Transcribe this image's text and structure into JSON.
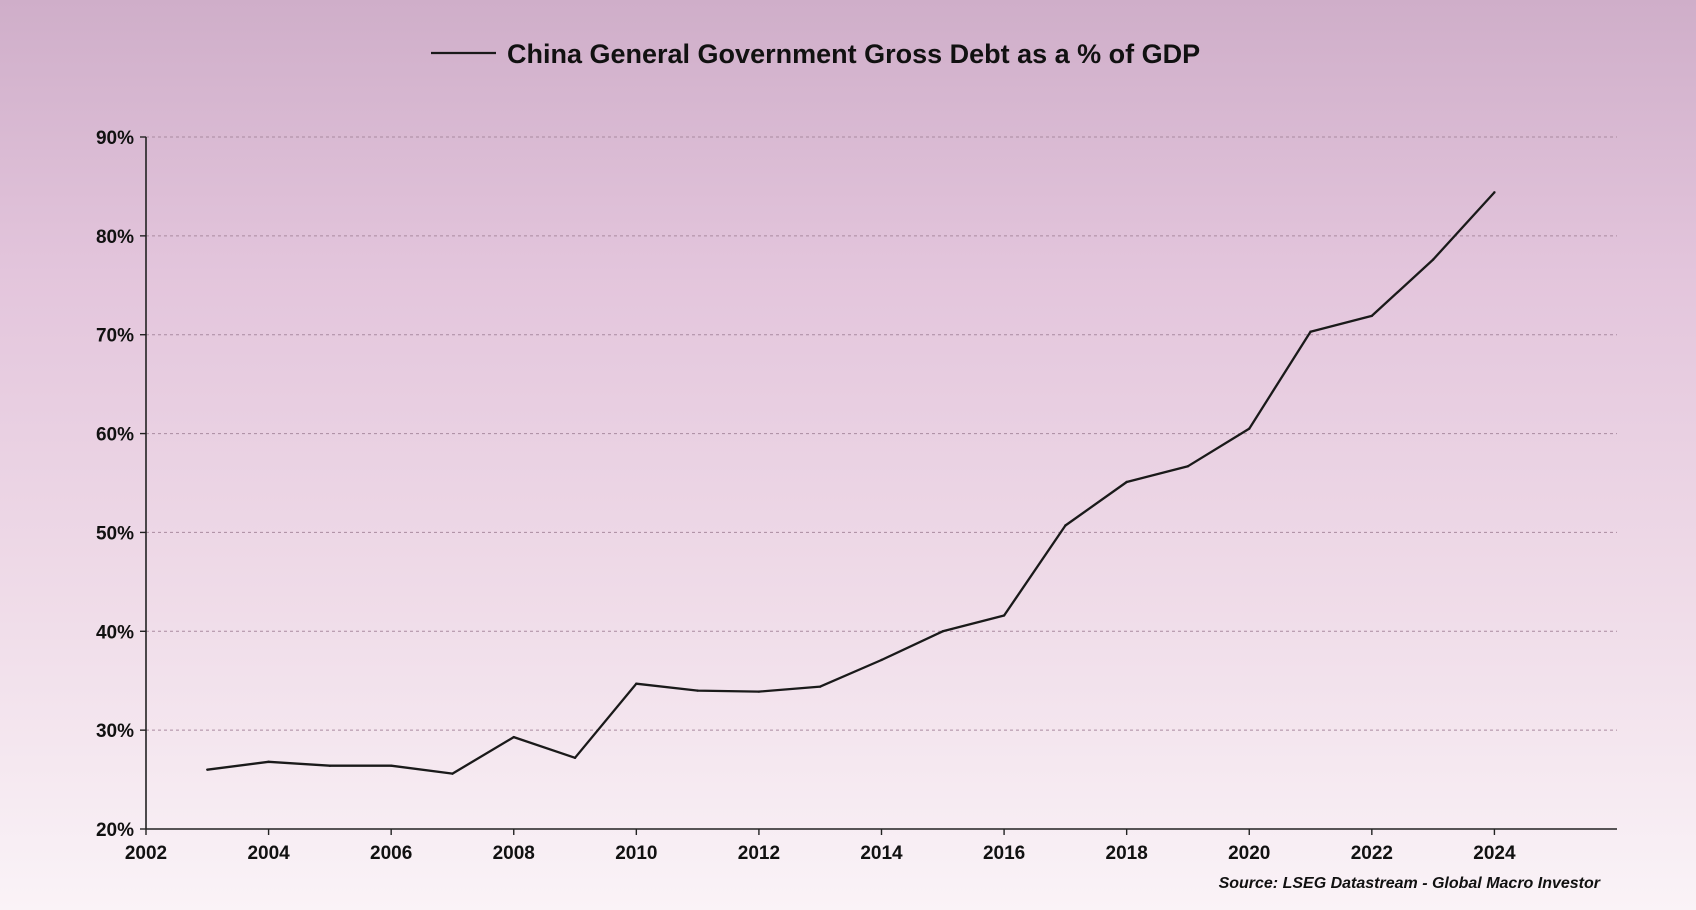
{
  "chart_data": {
    "type": "line",
    "legend": {
      "position": "top-center"
    },
    "series": [
      {
        "name": "China General Government Gross Debt as a % of GDP",
        "color": "#1a1a1a",
        "x": [
          2003,
          2004,
          2005,
          2006,
          2007,
          2008,
          2009,
          2010,
          2011,
          2012,
          2013,
          2014,
          2015,
          2016,
          2017,
          2018,
          2019,
          2020,
          2021,
          2022,
          2023,
          2024
        ],
        "y": [
          26.0,
          26.8,
          26.4,
          26.4,
          25.6,
          29.3,
          27.2,
          34.7,
          34.0,
          33.9,
          34.4,
          37.1,
          40.0,
          41.6,
          50.7,
          55.1,
          56.7,
          60.5,
          70.3,
          71.9,
          77.6,
          84.4
        ]
      }
    ],
    "xlim": [
      2002,
      2026
    ],
    "ylim": [
      20,
      90
    ],
    "x_ticks": [
      2002,
      2004,
      2006,
      2008,
      2010,
      2012,
      2014,
      2016,
      2018,
      2020,
      2022,
      2024
    ],
    "y_ticks": [
      {
        "value": 20,
        "label": "20%"
      },
      {
        "value": 30,
        "label": "30%"
      },
      {
        "value": 40,
        "label": "40%"
      },
      {
        "value": 50,
        "label": "50%"
      },
      {
        "value": 60,
        "label": "60%"
      },
      {
        "value": 70,
        "label": "70%"
      },
      {
        "value": 80,
        "label": "80%"
      },
      {
        "value": 90,
        "label": "90%"
      }
    ],
    "grid": {
      "horizontal": true,
      "style": "dashed"
    },
    "source": "Source: LSEG Datastream - Global Macro Investor"
  }
}
